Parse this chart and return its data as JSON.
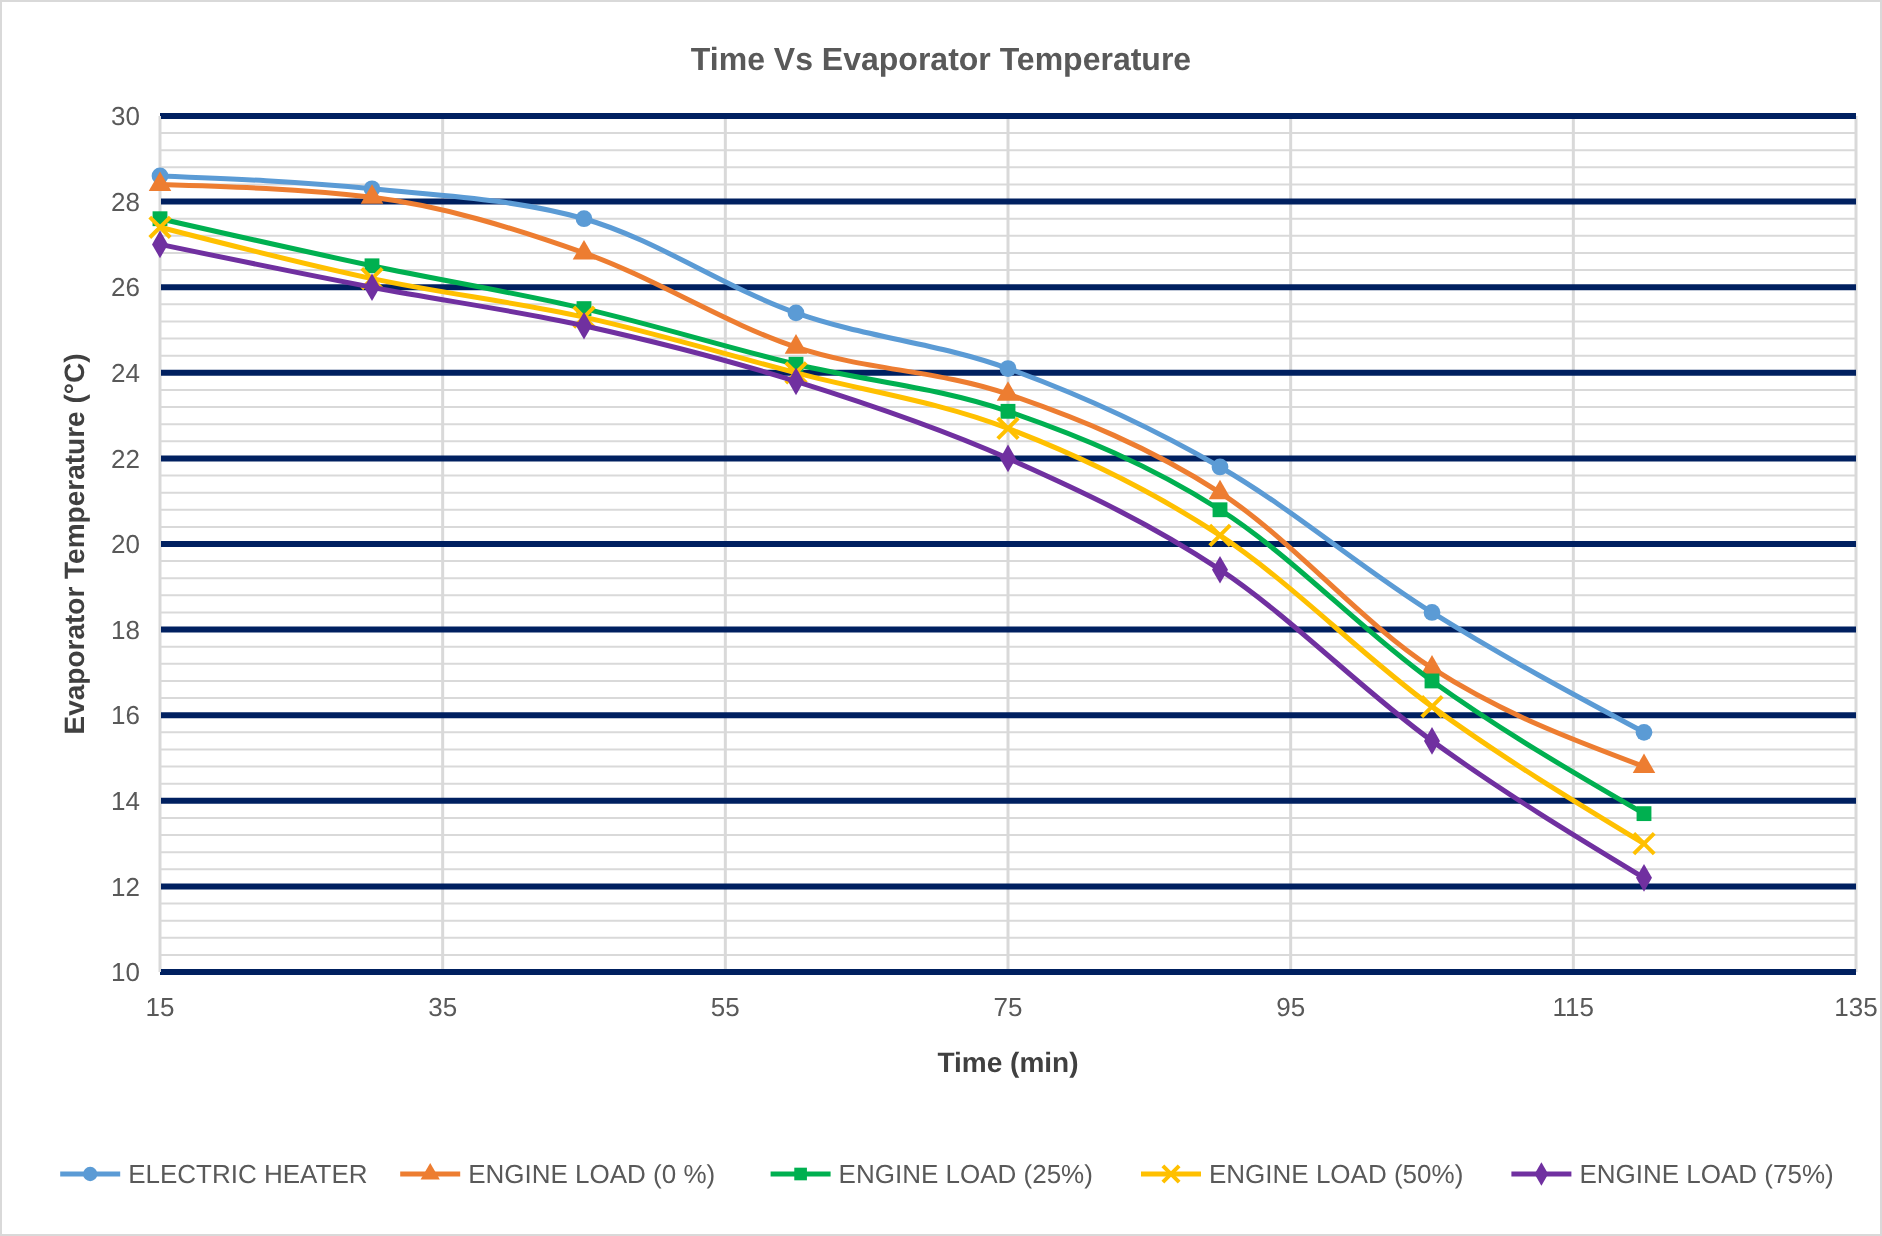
{
  "chart_data": {
    "type": "line",
    "title": "Time Vs Evaporator Temperature",
    "xlabel": "Time (min)",
    "ylabel": "Evaporator Temperature (°C)",
    "x": [
      15,
      30,
      45,
      60,
      75,
      90,
      105,
      120
    ],
    "xlim": [
      15,
      135
    ],
    "xticks": [
      15,
      35,
      55,
      75,
      95,
      115,
      135
    ],
    "ylim": [
      10,
      30
    ],
    "yticks": [
      10,
      12,
      14,
      16,
      18,
      20,
      22,
      24,
      26,
      28,
      30
    ],
    "grid": true,
    "legend": "bottom",
    "line_style": "solid",
    "series": [
      {
        "name": "ELECTRIC HEATER",
        "color": "#5b9bd5",
        "marker": "circle",
        "values": [
          28.6,
          28.3,
          27.6,
          25.4,
          24.1,
          21.8,
          18.4,
          15.6
        ]
      },
      {
        "name": "ENGINE LOAD (0 %)",
        "color": "#ed7d31",
        "marker": "triangle",
        "values": [
          28.4,
          28.1,
          26.8,
          24.6,
          23.5,
          21.2,
          17.1,
          14.8
        ]
      },
      {
        "name": "ENGINE LOAD (25%)",
        "color": "#00b050",
        "marker": "square",
        "values": [
          27.6,
          26.5,
          25.5,
          24.2,
          23.1,
          20.8,
          16.8,
          13.7
        ]
      },
      {
        "name": "ENGINE LOAD (50%)",
        "color": "#ffc000",
        "marker": "cross",
        "values": [
          27.4,
          26.2,
          25.3,
          24.0,
          22.7,
          20.2,
          16.2,
          13.0
        ]
      },
      {
        "name": "ENGINE LOAD (75%)",
        "color": "#7030a0",
        "marker": "diamond",
        "values": [
          27.0,
          26.0,
          25.1,
          23.8,
          22.0,
          19.4,
          15.4,
          12.2
        ]
      }
    ]
  }
}
